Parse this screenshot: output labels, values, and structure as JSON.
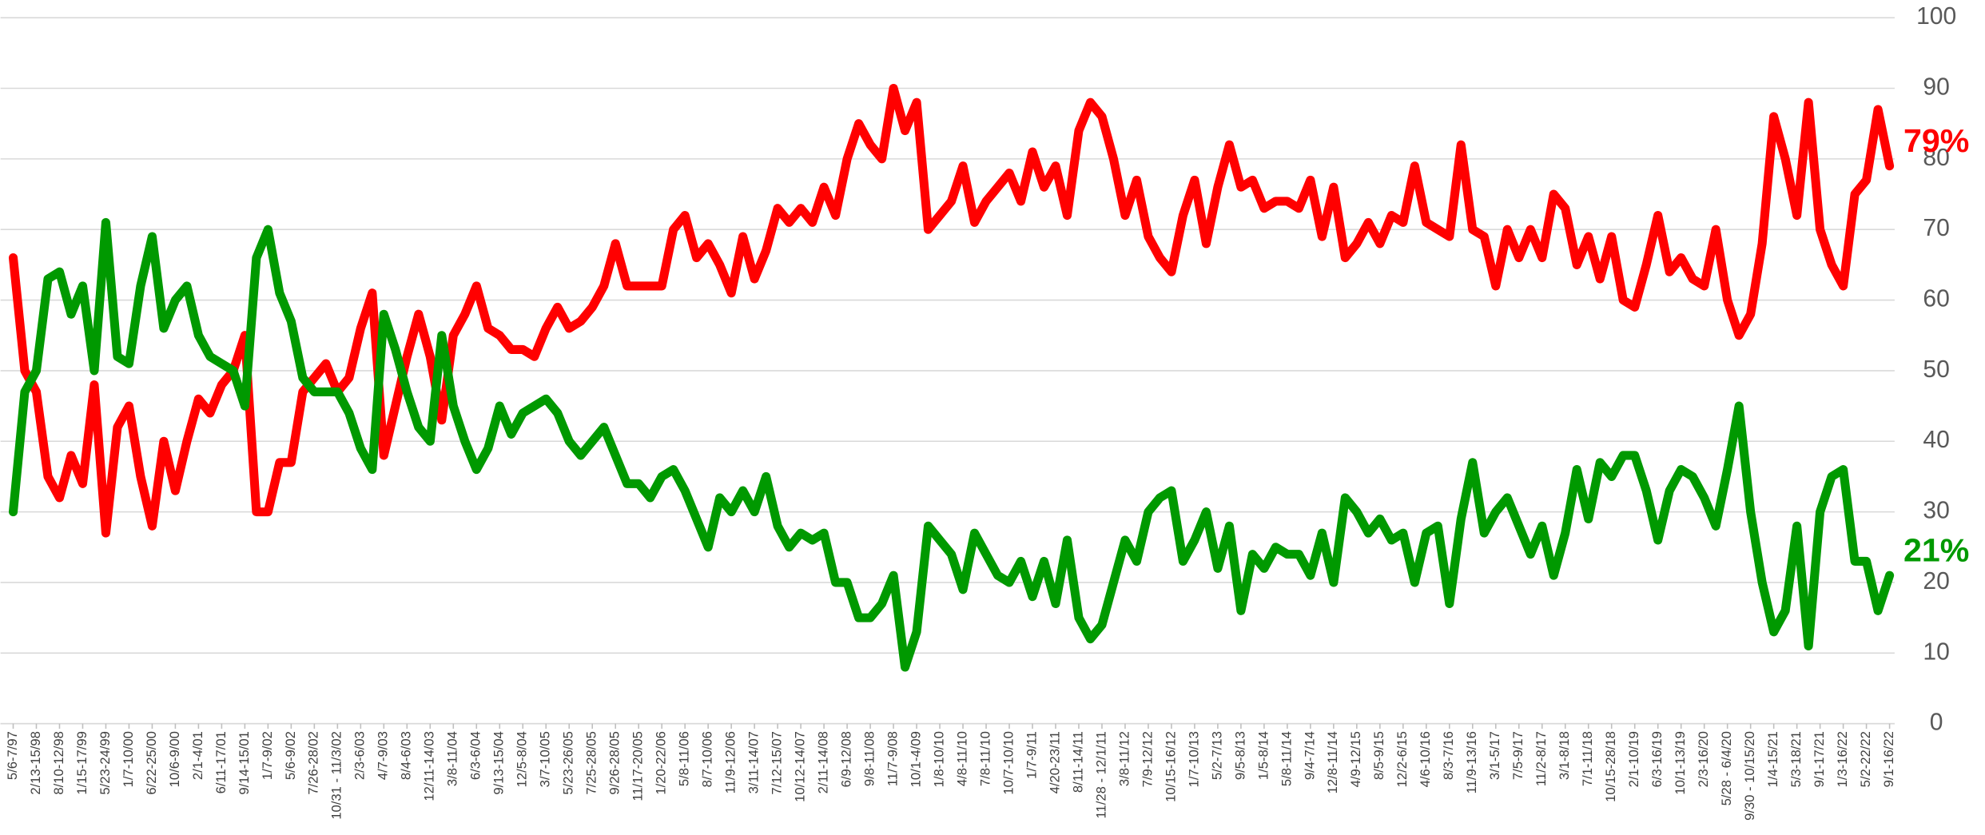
{
  "chart_data": {
    "type": "line",
    "categories": [
      "5/6-7/97",
      null,
      "2/13-15/98",
      null,
      "8/10-12/98",
      null,
      "1/15-17/99",
      null,
      "5/23-24/99",
      null,
      "1/7-10/00",
      null,
      "6/22-25/00",
      null,
      "10/6-9/00",
      null,
      "2/1-4/01",
      null,
      "6/11-17/01",
      null,
      "9/14-15/01",
      null,
      "1/7-9/02",
      null,
      "5/6-9/02",
      null,
      "7/26-28/02",
      null,
      "10/31 - 11/3/02",
      null,
      "2/3-6/03",
      null,
      "4/7-9/03",
      null,
      "8/4-6/03",
      null,
      "12/11-14/03",
      null,
      "3/8-11/04",
      null,
      "6/3-6/04",
      null,
      "9/13-15/04",
      null,
      "12/5-8/04",
      null,
      "3/7-10/05",
      null,
      "5/23-26/05",
      null,
      "7/25-28/05",
      null,
      "9/26-28/05",
      null,
      "11/17-20/05",
      null,
      "1/20-22/06",
      null,
      "5/8-11/06",
      null,
      "8/7-10/06",
      null,
      "11/9-12/06",
      null,
      "3/11-14/07",
      null,
      "7/12-15/07",
      null,
      "10/12-14/07",
      null,
      "2/11-14/08",
      null,
      "6/9-12/08",
      null,
      "9/8-11/08",
      null,
      "11/7-9/08",
      null,
      "10/1-4/09",
      null,
      "1/8-10/10",
      null,
      "4/8-11/10",
      null,
      "7/8-11/10",
      null,
      "10/7-10/10",
      null,
      "1/7-9/11",
      null,
      "4/20-23/11",
      null,
      "8/11-14/11",
      null,
      "11/28 - 12/1/11",
      null,
      "3/8-11/12",
      null,
      "7/9-12/12",
      null,
      "10/15-16/12",
      null,
      "1/7-10/13",
      null,
      "5/2-7/13",
      null,
      "9/5-8/13",
      null,
      "1/5-8/14",
      null,
      "5/8-11/14",
      null,
      "9/4-7/14",
      null,
      "12/8-11/14",
      null,
      "4/9-12/15",
      null,
      "8/5-9/15",
      null,
      "12/2-6/15",
      null,
      "4/6-10/16",
      null,
      "8/3-7/16",
      null,
      "11/9-13/16",
      null,
      "3/1-5/17",
      null,
      "7/5-9/17",
      null,
      "11/2-8/17",
      null,
      "3/1-8/18",
      null,
      "7/1-11/18",
      null,
      "10/15-28/18",
      null,
      "2/1-10/19",
      null,
      "6/3-16/19",
      null,
      "10/1-13/19",
      null,
      "2/3-16/20",
      null,
      "5/28 - 6/4/20",
      null,
      "9/30 - 10/15/20",
      null,
      "1/4-15/21",
      null,
      "5/3-18/21",
      null,
      "9/1-17/21",
      null,
      "1/3-16/22",
      null,
      "5/2-22/22",
      null,
      "9/1-16/22"
    ],
    "series": [
      {
        "color": "#ff0000",
        "end_label": "79%",
        "values": [
          66,
          50,
          47,
          35,
          32,
          38,
          34,
          48,
          27,
          42,
          45,
          35,
          28,
          40,
          33,
          40,
          46,
          44,
          48,
          50,
          55,
          30,
          30,
          37,
          37,
          47,
          49,
          51,
          47,
          49,
          56,
          61,
          38,
          45,
          52,
          58,
          52,
          43,
          55,
          58,
          62,
          56,
          55,
          53,
          53,
          52,
          56,
          59,
          56,
          57,
          59,
          62,
          68,
          62,
          62,
          62,
          62,
          70,
          72,
          66,
          68,
          65,
          61,
          69,
          63,
          67,
          73,
          71,
          73,
          71,
          76,
          72,
          80,
          85,
          82,
          80,
          90,
          84,
          88,
          70,
          72,
          74,
          79,
          71,
          74,
          76,
          78,
          74,
          81,
          76,
          79,
          72,
          84,
          88,
          86,
          80,
          72,
          77,
          69,
          66,
          64,
          72,
          77,
          68,
          76,
          82,
          76,
          77,
          73,
          74,
          74,
          73,
          77,
          69,
          76,
          66,
          68,
          71,
          68,
          72,
          71,
          79,
          71,
          70,
          69,
          82,
          70,
          69,
          62,
          70,
          66,
          70,
          66,
          75,
          73,
          65,
          69,
          63,
          69,
          60,
          59,
          65,
          72,
          64,
          66,
          63,
          62,
          70,
          60,
          55,
          58,
          68,
          86,
          80,
          72,
          88,
          70,
          65,
          62,
          75,
          77,
          87,
          79
        ]
      },
      {
        "color": "#009900",
        "end_label": "21%",
        "values": [
          30,
          47,
          50,
          63,
          64,
          58,
          62,
          50,
          71,
          52,
          51,
          62,
          69,
          56,
          60,
          62,
          55,
          52,
          51,
          50,
          45,
          66,
          70,
          61,
          57,
          49,
          47,
          47,
          47,
          44,
          39,
          36,
          58,
          53,
          47,
          42,
          40,
          55,
          45,
          40,
          36,
          39,
          45,
          41,
          44,
          45,
          46,
          44,
          40,
          38,
          40,
          42,
          38,
          34,
          34,
          32,
          35,
          36,
          33,
          29,
          25,
          32,
          30,
          33,
          30,
          35,
          28,
          25,
          27,
          26,
          27,
          20,
          20,
          15,
          15,
          17,
          21,
          8,
          13,
          28,
          26,
          24,
          19,
          27,
          24,
          21,
          20,
          23,
          18,
          23,
          17,
          26,
          15,
          12,
          14,
          20,
          26,
          23,
          30,
          32,
          33,
          23,
          26,
          30,
          22,
          28,
          16,
          24,
          22,
          25,
          24,
          24,
          21,
          27,
          20,
          32,
          30,
          27,
          29,
          26,
          27,
          20,
          27,
          28,
          17,
          29,
          37,
          27,
          30,
          32,
          28,
          24,
          28,
          21,
          27,
          36,
          29,
          37,
          35,
          38,
          38,
          33,
          26,
          33,
          36,
          35,
          32,
          28,
          36,
          45,
          30,
          20,
          13,
          16,
          28,
          11,
          30,
          35,
          36,
          23,
          23,
          16,
          21
        ]
      }
    ],
    "ylim": [
      0,
      100
    ],
    "yticks": [
      0,
      10,
      20,
      30,
      40,
      50,
      60,
      70,
      80,
      90,
      100
    ],
    "grid": true
  }
}
